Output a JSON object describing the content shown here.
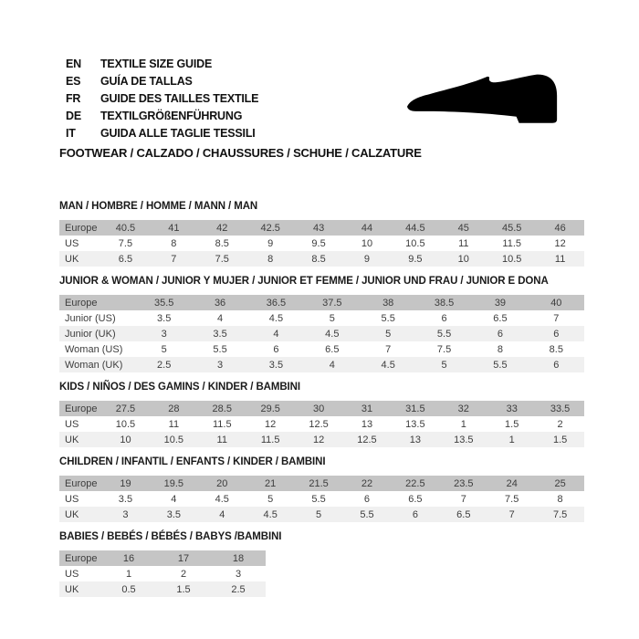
{
  "header": {
    "languages": [
      {
        "code": "EN",
        "label": "TEXTILE SIZE GUIDE"
      },
      {
        "code": "ES",
        "label": "GUÍA DE TALLAS"
      },
      {
        "code": "FR",
        "label": "GUIDE DES TAILLES TEXTILE"
      },
      {
        "code": "DE",
        "label": "TEXTILGRÖßENFÜHRUNG"
      },
      {
        "code": "IT",
        "label": "GUIDA ALLE TAGLIE TESSILI"
      }
    ],
    "category_line": "FOOTWEAR / CALZADO / CHAUSSURES / SCHUHE / CALZATURE",
    "shoe_icon": "dress-shoe-silhouette"
  },
  "colors": {
    "header_row_bg": "#c5c5c5",
    "alt_row_bg": "#f0f0f0",
    "heading_text": "#1a1a1a",
    "table_text": "#3d3d3d",
    "shoe": "#000000"
  },
  "size_tables": [
    {
      "title": "MAN / HOMBRE / HOMME / MANN / MAN",
      "rows": [
        {
          "label": "Europe",
          "values": [
            "40.5",
            "41",
            "42",
            "42.5",
            "43",
            "44",
            "44.5",
            "45",
            "45.5",
            "46"
          ]
        },
        {
          "label": "US",
          "values": [
            "7.5",
            "8",
            "8.5",
            "9",
            "9.5",
            "10",
            "10.5",
            "11",
            "11.5",
            "12"
          ]
        },
        {
          "label": "UK",
          "values": [
            "6.5",
            "7",
            "7.5",
            "8",
            "8.5",
            "9",
            "9.5",
            "10",
            "10.5",
            "11"
          ]
        }
      ]
    },
    {
      "title": "JUNIOR & WOMAN / JUNIOR Y MUJER / JUNIOR ET FEMME / JUNIOR UND FRAU / JUNIOR E DONA",
      "rows": [
        {
          "label": "Europe",
          "values": [
            "35.5",
            "36",
            "36.5",
            "37.5",
            "38",
            "38.5",
            "39",
            "40"
          ]
        },
        {
          "label": "Junior (US)",
          "values": [
            "3.5",
            "4",
            "4.5",
            "5",
            "5.5",
            "6",
            "6.5",
            "7"
          ]
        },
        {
          "label": "Junior (UK)",
          "values": [
            "3",
            "3.5",
            "4",
            "4.5",
            "5",
            "5.5",
            "6",
            "6"
          ]
        },
        {
          "label": "Woman (US)",
          "values": [
            "5",
            "5.5",
            "6",
            "6.5",
            "7",
            "7.5",
            "8",
            "8.5"
          ]
        },
        {
          "label": "Woman (UK)",
          "values": [
            "2.5",
            "3",
            "3.5",
            "4",
            "4.5",
            "5",
            "5.5",
            "6"
          ]
        }
      ]
    },
    {
      "title": "KIDS / NIÑOS / DES GAMINS / KINDER / BAMBINI",
      "rows": [
        {
          "label": "Europe",
          "values": [
            "27.5",
            "28",
            "28.5",
            "29.5",
            "30",
            "31",
            "31.5",
            "32",
            "33",
            "33.5"
          ]
        },
        {
          "label": "US",
          "values": [
            "10.5",
            "11",
            "11.5",
            "12",
            "12.5",
            "13",
            "13.5",
            "1",
            "1.5",
            "2"
          ]
        },
        {
          "label": "UK",
          "values": [
            "10",
            "10.5",
            "11",
            "11.5",
            "12",
            "12.5",
            "13",
            "13.5",
            "1",
            "1.5"
          ]
        }
      ]
    },
    {
      "title": "CHILDREN / INFANTIL / ENFANTS / KINDER / BAMBINI",
      "rows": [
        {
          "label": "Europe",
          "values": [
            "19",
            "19.5",
            "20",
            "21",
            "21.5",
            "22",
            "22.5",
            "23.5",
            "24",
            "25"
          ]
        },
        {
          "label": "US",
          "values": [
            "3.5",
            "4",
            "4.5",
            "5",
            "5.5",
            "6",
            "6.5",
            "7",
            "7.5",
            "8"
          ]
        },
        {
          "label": "UK",
          "values": [
            "3",
            "3.5",
            "4",
            "4.5",
            "5",
            "5.5",
            "6",
            "6.5",
            "7",
            "7.5"
          ]
        }
      ]
    },
    {
      "title": "BABIES  / BEBÉS / BÉBÉS / BABYS /BAMBINI",
      "rows": [
        {
          "label": "Europe",
          "values": [
            "16",
            "17",
            "18"
          ]
        },
        {
          "label": "US",
          "values": [
            "1",
            "2",
            "3"
          ]
        },
        {
          "label": "UK",
          "values": [
            "0.5",
            "1.5",
            "2.5"
          ]
        }
      ]
    }
  ]
}
